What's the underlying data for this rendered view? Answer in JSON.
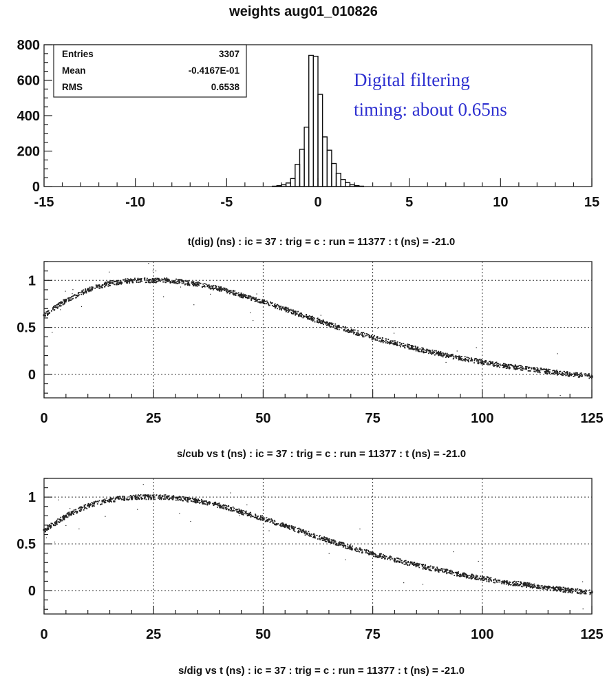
{
  "page": {
    "title": "weights aug01_010826"
  },
  "chart_data": [
    {
      "type": "bar",
      "title": "weights aug01_010826",
      "caption": "t(dig) (ns) : ic =  37 : trig = c          : run = 11377 : t (ns) =  -21.0",
      "xlim": [
        -15,
        15
      ],
      "ylim": [
        0,
        800
      ],
      "x_ticks": [
        -15,
        -10,
        -5,
        0,
        5,
        10,
        15
      ],
      "y_ticks": [
        0,
        200,
        400,
        600,
        800
      ],
      "bin_width": 0.25,
      "x": [
        -2.5,
        -2.25,
        -2.0,
        -1.75,
        -1.5,
        -1.25,
        -1.0,
        -0.75,
        -0.5,
        -0.25,
        0.0,
        0.25,
        0.5,
        0.75,
        1.0,
        1.25,
        1.5,
        1.75,
        2.0,
        2.25
      ],
      "values": [
        2,
        5,
        10,
        20,
        45,
        125,
        210,
        335,
        740,
        735,
        520,
        280,
        205,
        130,
        75,
        40,
        22,
        10,
        5,
        2
      ],
      "stats": [
        {
          "label": "Entries",
          "value": "3307"
        },
        {
          "label": "Mean",
          "value": "-0.4167E-01"
        },
        {
          "label": "RMS",
          "value": "0.6538"
        }
      ],
      "annotation": [
        "Digital filtering",
        "timing: about 0.65ns"
      ],
      "grid": false
    },
    {
      "type": "scatter",
      "caption": "s/cub vs t (ns) : ic =  37 : trig = c          : run = 11377 : t (ns) =  -21.0",
      "xlim": [
        0,
        125
      ],
      "ylim": [
        -0.25,
        1.2
      ],
      "x_ticks": [
        0,
        25,
        50,
        75,
        100,
        125
      ],
      "y_ticks": [
        0,
        0.5,
        1
      ],
      "y_tick_labels": [
        "0",
        "0.5",
        "1"
      ],
      "grid": true,
      "series": [
        {
          "x": [
            0,
            5,
            10,
            15,
            20,
            25,
            28,
            35,
            40,
            45,
            50,
            55,
            60,
            65,
            70,
            75,
            80,
            85,
            90,
            95,
            100,
            105,
            110,
            115,
            120,
            125
          ],
          "values": [
            0.63,
            0.79,
            0.9,
            0.97,
            1.0,
            1.0,
            1.0,
            0.96,
            0.91,
            0.84,
            0.77,
            0.69,
            0.61,
            0.53,
            0.46,
            0.39,
            0.33,
            0.27,
            0.22,
            0.17,
            0.13,
            0.09,
            0.06,
            0.03,
            0.0,
            -0.02
          ]
        }
      ]
    },
    {
      "type": "scatter",
      "caption": "s/dig vs t (ns) : ic =  37 : trig = c          : run = 11377 : t (ns) =  -21.0",
      "xlim": [
        0,
        125
      ],
      "ylim": [
        -0.25,
        1.2
      ],
      "x_ticks": [
        0,
        25,
        50,
        75,
        100,
        125
      ],
      "y_ticks": [
        0,
        0.5,
        1
      ],
      "y_tick_labels": [
        "0",
        "0.5",
        "1"
      ],
      "grid": true,
      "series": [
        {
          "x": [
            0,
            5,
            10,
            15,
            20,
            25,
            28,
            35,
            40,
            45,
            50,
            55,
            60,
            65,
            70,
            75,
            80,
            85,
            90,
            95,
            100,
            105,
            110,
            115,
            120,
            125
          ],
          "values": [
            0.65,
            0.8,
            0.91,
            0.97,
            1.0,
            1.0,
            1.0,
            0.96,
            0.91,
            0.84,
            0.77,
            0.69,
            0.61,
            0.53,
            0.46,
            0.39,
            0.33,
            0.27,
            0.22,
            0.17,
            0.13,
            0.09,
            0.06,
            0.03,
            0.0,
            -0.02
          ]
        }
      ]
    }
  ]
}
